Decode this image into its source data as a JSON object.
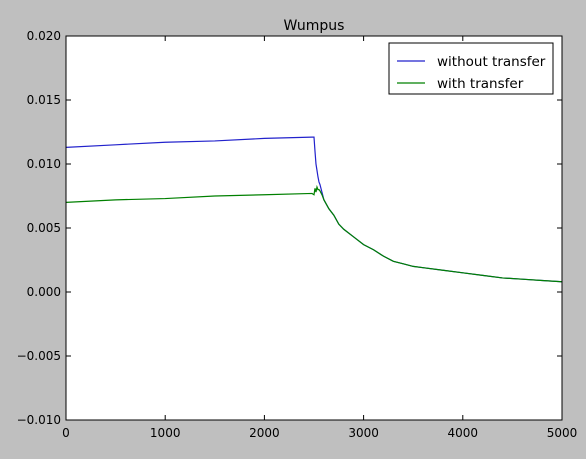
{
  "chart_data": {
    "type": "line",
    "title": "Wumpus",
    "xlabel": "",
    "ylabel": "",
    "xlim": [
      0,
      5000
    ],
    "ylim": [
      -0.01,
      0.02
    ],
    "xticks": [
      0,
      1000,
      2000,
      3000,
      4000,
      5000
    ],
    "xtick_labels": [
      "0",
      "1000",
      "2000",
      "3000",
      "4000",
      "5000"
    ],
    "yticks": [
      -0.01,
      -0.005,
      0.0,
      0.005,
      0.01,
      0.015,
      0.02
    ],
    "ytick_labels": [
      "−0.010",
      "−0.005",
      "0.000",
      "0.005",
      "0.010",
      "0.015",
      "0.020"
    ],
    "grid": false,
    "legend_position": "top-right",
    "series": [
      {
        "name": "without transfer",
        "color": "#2222cc",
        "x": [
          0,
          500,
          1000,
          1500,
          2000,
          2480,
          2500,
          2510,
          2520,
          2530,
          2540,
          2550,
          2560,
          2580,
          2600,
          2650,
          2700,
          2750,
          2800,
          2900,
          3000,
          3100,
          3200,
          3300,
          3400,
          3500,
          3600,
          3800,
          4000,
          4200,
          4400,
          4600,
          4800,
          5000
        ],
        "y": [
          0.0113,
          0.0115,
          0.0117,
          0.0118,
          0.012,
          0.0121,
          0.0121,
          0.011,
          0.01,
          0.0095,
          0.009,
          0.0086,
          0.0084,
          0.0078,
          0.0072,
          0.0065,
          0.006,
          0.0053,
          0.0049,
          0.0043,
          0.0037,
          0.0033,
          0.0028,
          0.0024,
          0.0022,
          0.002,
          0.0019,
          0.0017,
          0.0015,
          0.0013,
          0.0011,
          0.001,
          0.0009,
          0.0008
        ]
      },
      {
        "name": "with transfer",
        "color": "#008000",
        "x": [
          0,
          500,
          1000,
          1500,
          2000,
          2480,
          2500,
          2510,
          2520,
          2530,
          2540,
          2550,
          2560,
          2580,
          2600,
          2650,
          2700,
          2750,
          2800,
          2900,
          3000,
          3100,
          3200,
          3300,
          3400,
          3500,
          3600,
          3800,
          4000,
          4200,
          4400,
          4600,
          4800,
          5000
        ],
        "y": [
          0.007,
          0.0072,
          0.0073,
          0.0075,
          0.0076,
          0.0077,
          0.0076,
          0.0081,
          0.0078,
          0.0082,
          0.008,
          0.008,
          0.0079,
          0.0076,
          0.0072,
          0.0065,
          0.006,
          0.0053,
          0.0049,
          0.0043,
          0.0037,
          0.0033,
          0.0028,
          0.0024,
          0.0022,
          0.002,
          0.0019,
          0.0017,
          0.0015,
          0.0013,
          0.0011,
          0.001,
          0.0009,
          0.0008
        ]
      }
    ]
  }
}
